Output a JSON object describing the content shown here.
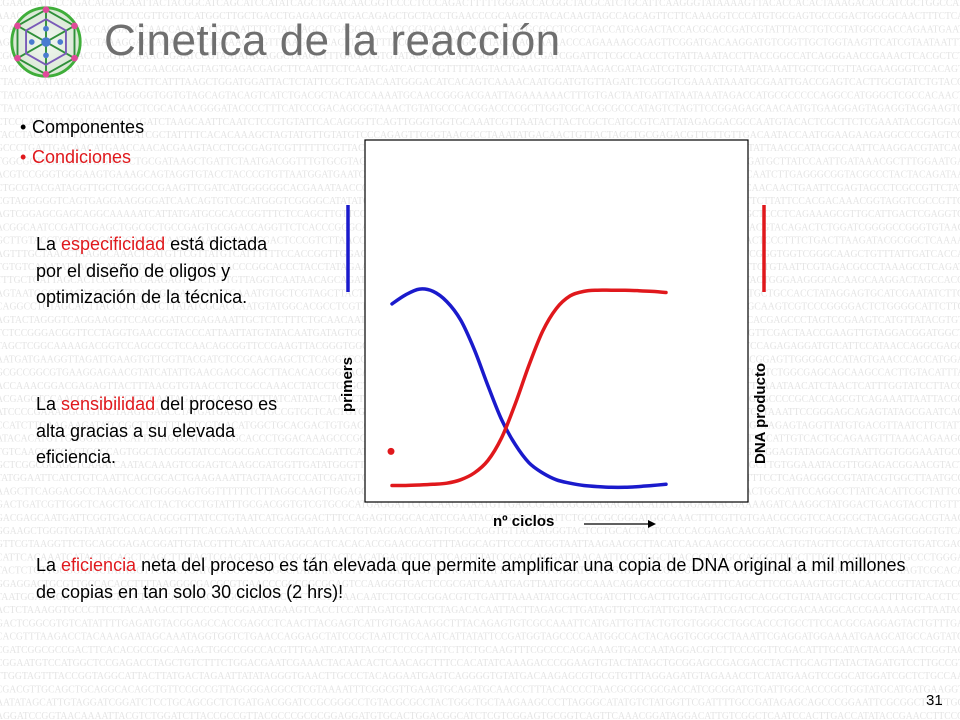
{
  "title": "Cinetica de la reacción",
  "bullets": {
    "componentes": "Componentes",
    "condiciones": "Condiciones"
  },
  "paragraphs": {
    "especificidad": {
      "pre": "La ",
      "highlight": "especificidad",
      "post": " está dictada por el diseño de oligos y optimización de la técnica."
    },
    "sensibilidad": {
      "pre": "La ",
      "highlight": "sensibilidad",
      "post": " del proceso es alta gracias a su elevada eficiencia."
    },
    "eficiencia": {
      "pre": "La ",
      "highlight": "eficiencia",
      "post": " neta del proceso es tán elevada que permite amplificar una copia de DNA original a mil millones de copias en tan solo 30 ciclos (2 hrs)!"
    }
  },
  "chart": {
    "xlabel": "nº ciclos",
    "ylabel_left": "primers",
    "ylabel_right": "DNA producto",
    "colors": {
      "primers": "#1a1acc",
      "product": "#e0181c",
      "frame": "#000000"
    }
  },
  "chart_data": {
    "type": "line",
    "xlabel": "nº ciclos",
    "series": [
      {
        "name": "primers",
        "x": [
          0.0,
          0.05,
          0.1,
          0.15,
          0.2,
          0.25,
          0.3,
          0.35,
          0.4,
          0.45,
          0.5,
          0.55,
          0.6,
          0.65,
          0.7,
          0.75,
          0.8,
          0.85,
          0.9,
          0.95,
          1.0
        ],
        "values": [
          0.82,
          0.86,
          0.885,
          0.875,
          0.83,
          0.75,
          0.62,
          0.46,
          0.31,
          0.2,
          0.12,
          0.075,
          0.045,
          0.03,
          0.02,
          0.015,
          0.012,
          0.012,
          0.015,
          0.02,
          0.025
        ]
      },
      {
        "name": "DNA producto",
        "x": [
          0.0,
          0.05,
          0.1,
          0.15,
          0.2,
          0.25,
          0.3,
          0.35,
          0.4,
          0.45,
          0.5,
          0.55,
          0.6,
          0.65,
          0.7,
          0.75,
          0.8,
          0.85,
          0.9,
          0.95,
          1.0
        ],
        "values": [
          0.02,
          0.02,
          0.022,
          0.025,
          0.03,
          0.045,
          0.075,
          0.13,
          0.23,
          0.38,
          0.55,
          0.7,
          0.8,
          0.855,
          0.875,
          0.88,
          0.88,
          0.88,
          0.878,
          0.875,
          0.87
        ]
      }
    ],
    "initial_point": {
      "x": 0.0,
      "value": 0.17
    },
    "grid": false,
    "legend": "none"
  },
  "page_number": "31"
}
